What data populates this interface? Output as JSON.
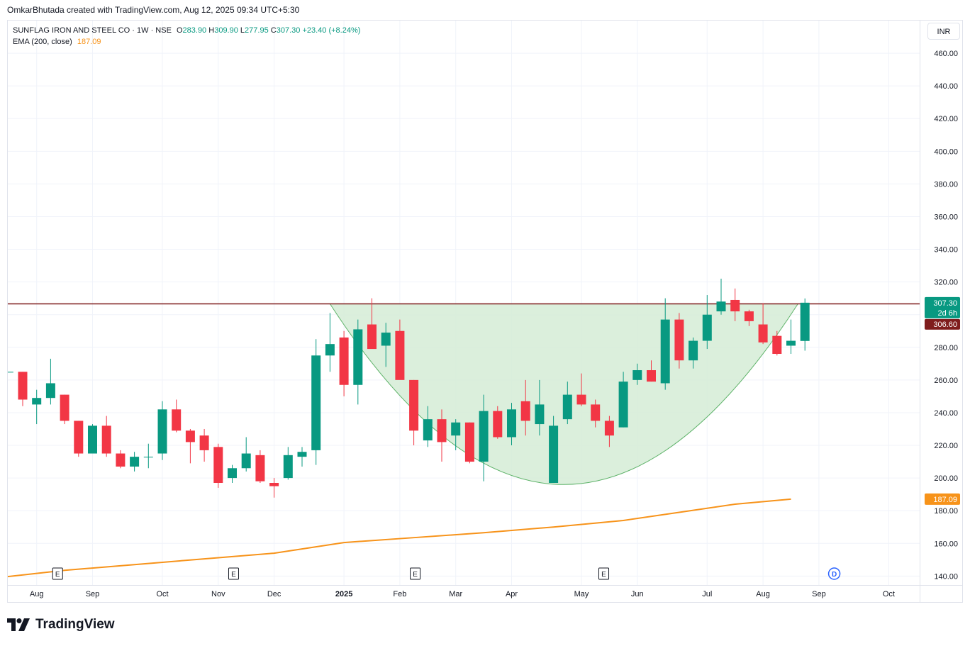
{
  "caption": "OmkarBhutada created with TradingView.com, Aug 12, 2025 09:34 UTC+5:30",
  "legend": {
    "symbol": "SUNFLAG IRON AND STEEL CO · 1W · NSE",
    "o_label": "O",
    "o_value": "283.90",
    "h_label": "H",
    "h_value": "309.90",
    "l_label": "L",
    "l_value": "277.95",
    "c_label": "C",
    "c_value": "307.30",
    "change": "+23.40 (+8.24%)",
    "ema_label": "EMA (200, close)",
    "ema_value": "187.09"
  },
  "currency": "INR",
  "brand": "TradingView",
  "colors": {
    "up": "#089981",
    "down": "#f23645",
    "ema": "#f7931a",
    "resistance": "#7f1d1d",
    "cup_fill": "#d5ecd6",
    "cup_stroke": "#5fb36a"
  },
  "chart_data": {
    "type": "candlestick",
    "y_ticks": [
      "460.00",
      "440.00",
      "420.00",
      "400.00",
      "380.00",
      "360.00",
      "340.00",
      "320.00",
      "300.00",
      "280.00",
      "260.00",
      "240.00",
      "220.00",
      "200.00",
      "180.00",
      "160.00",
      "140.00"
    ],
    "ylim": [
      134.5,
      480
    ],
    "x_labels": [
      {
        "text": "Aug",
        "i": 2
      },
      {
        "text": "Sep",
        "i": 6
      },
      {
        "text": "Oct",
        "i": 11
      },
      {
        "text": "Nov",
        "i": 15
      },
      {
        "text": "Dec",
        "i": 19
      },
      {
        "text": "2025",
        "i": 24,
        "bold": true
      },
      {
        "text": "Feb",
        "i": 28
      },
      {
        "text": "Mar",
        "i": 32
      },
      {
        "text": "Apr",
        "i": 36
      },
      {
        "text": "May",
        "i": 41
      },
      {
        "text": "Jun",
        "i": 45
      },
      {
        "text": "Jul",
        "i": 50
      },
      {
        "text": "Aug",
        "i": 54
      },
      {
        "text": "Sep",
        "i": 58
      },
      {
        "text": "Oct",
        "i": 63
      }
    ],
    "earnings_markers": [
      {
        "i": 3.5,
        "text": "E"
      },
      {
        "i": 16.1,
        "text": "E"
      },
      {
        "i": 29.1,
        "text": "E"
      },
      {
        "i": 42.6,
        "text": "E"
      }
    ],
    "dividend_markers": [
      {
        "i": 59.1,
        "text": "D"
      }
    ],
    "candles": [
      {
        "o": 265,
        "h": 265,
        "l": 265,
        "c": 265
      },
      {
        "o": 265,
        "h": 265,
        "l": 244,
        "c": 248
      },
      {
        "o": 245,
        "h": 254,
        "l": 233,
        "c": 249
      },
      {
        "o": 249,
        "h": 273,
        "l": 245,
        "c": 258
      },
      {
        "o": 251,
        "h": 251,
        "l": 233,
        "c": 235
      },
      {
        "o": 235,
        "h": 235,
        "l": 213,
        "c": 215
      },
      {
        "o": 215,
        "h": 233,
        "l": 215,
        "c": 232
      },
      {
        "o": 232,
        "h": 238,
        "l": 213,
        "c": 215
      },
      {
        "o": 215,
        "h": 217,
        "l": 206,
        "c": 207
      },
      {
        "o": 207,
        "h": 216,
        "l": 204,
        "c": 213
      },
      {
        "o": 213,
        "h": 221,
        "l": 206,
        "c": 213
      },
      {
        "o": 215,
        "h": 247,
        "l": 211,
        "c": 242
      },
      {
        "o": 242,
        "h": 248,
        "l": 228,
        "c": 229
      },
      {
        "o": 229,
        "h": 230,
        "l": 209,
        "c": 222
      },
      {
        "o": 226,
        "h": 230,
        "l": 210,
        "c": 217
      },
      {
        "o": 219,
        "h": 221,
        "l": 194,
        "c": 197
      },
      {
        "o": 200,
        "h": 208,
        "l": 197,
        "c": 206
      },
      {
        "o": 206,
        "h": 225,
        "l": 204,
        "c": 215
      },
      {
        "o": 214,
        "h": 217,
        "l": 197,
        "c": 198
      },
      {
        "o": 197,
        "h": 200,
        "l": 188,
        "c": 195
      },
      {
        "o": 200,
        "h": 219,
        "l": 199,
        "c": 214
      },
      {
        "o": 213,
        "h": 219,
        "l": 207,
        "c": 216
      },
      {
        "o": 217,
        "h": 285,
        "l": 208,
        "c": 275
      },
      {
        "o": 275,
        "h": 301,
        "l": 265,
        "c": 282
      },
      {
        "o": 286,
        "h": 290,
        "l": 250,
        "c": 257
      },
      {
        "o": 257,
        "h": 297,
        "l": 245,
        "c": 291
      },
      {
        "o": 294,
        "h": 310,
        "l": 281,
        "c": 279
      },
      {
        "o": 281,
        "h": 295,
        "l": 268,
        "c": 289
      },
      {
        "o": 290,
        "h": 297,
        "l": 262,
        "c": 260
      },
      {
        "o": 260,
        "h": 260,
        "l": 220,
        "c": 229
      },
      {
        "o": 223,
        "h": 244,
        "l": 219,
        "c": 236
      },
      {
        "o": 236,
        "h": 242,
        "l": 210,
        "c": 222
      },
      {
        "o": 226,
        "h": 236,
        "l": 217,
        "c": 234
      },
      {
        "o": 234,
        "h": 234,
        "l": 209,
        "c": 210
      },
      {
        "o": 210,
        "h": 251,
        "l": 198,
        "c": 241
      },
      {
        "o": 241,
        "h": 244,
        "l": 224,
        "c": 225
      },
      {
        "o": 225,
        "h": 246,
        "l": 220,
        "c": 242
      },
      {
        "o": 247,
        "h": 260,
        "l": 226,
        "c": 235
      },
      {
        "o": 233,
        "h": 260,
        "l": 226,
        "c": 245
      },
      {
        "o": 197,
        "h": 238,
        "l": 197,
        "c": 232
      },
      {
        "o": 236,
        "h": 259,
        "l": 233,
        "c": 251
      },
      {
        "o": 251,
        "h": 264,
        "l": 244,
        "c": 245
      },
      {
        "o": 245,
        "h": 248,
        "l": 231,
        "c": 235
      },
      {
        "o": 235,
        "h": 238,
        "l": 219,
        "c": 226
      },
      {
        "o": 231,
        "h": 265,
        "l": 231,
        "c": 259
      },
      {
        "o": 260,
        "h": 270,
        "l": 257,
        "c": 266
      },
      {
        "o": 266,
        "h": 272,
        "l": 259,
        "c": 259
      },
      {
        "o": 258,
        "h": 310,
        "l": 254,
        "c": 297
      },
      {
        "o": 297,
        "h": 301,
        "l": 267,
        "c": 272
      },
      {
        "o": 272,
        "h": 286,
        "l": 267,
        "c": 284
      },
      {
        "o": 284,
        "h": 312,
        "l": 279,
        "c": 300
      },
      {
        "o": 302,
        "h": 322,
        "l": 300,
        "c": 308
      },
      {
        "o": 309,
        "h": 316,
        "l": 296,
        "c": 302
      },
      {
        "o": 302,
        "h": 303,
        "l": 293,
        "c": 296
      },
      {
        "o": 294,
        "h": 307,
        "l": 282,
        "c": 283
      },
      {
        "o": 287,
        "h": 290,
        "l": 275,
        "c": 276
      },
      {
        "o": 281,
        "h": 297,
        "l": 276,
        "c": 284
      },
      {
        "o": 283.9,
        "h": 309.9,
        "l": 277.95,
        "c": 307.3
      }
    ],
    "ema_200": [
      [
        -1,
        138.8
      ],
      [
        4,
        143.5
      ],
      [
        9,
        147
      ],
      [
        14,
        150.5
      ],
      [
        19,
        154
      ],
      [
        24,
        160.5
      ],
      [
        29,
        163.5
      ],
      [
        34,
        166.5
      ],
      [
        39,
        170
      ],
      [
        44,
        174
      ],
      [
        48,
        179
      ],
      [
        52,
        184
      ],
      [
        56,
        187.09
      ]
    ],
    "resistance_level": 306.6,
    "cup_pattern": {
      "left_i": 23,
      "right_i": 56.5,
      "rim_price": 306.6,
      "bottom_price": 196
    },
    "last_price_label": "307.30",
    "countdown_label": "2d 6h",
    "resistance_label": "306.60",
    "ema_label": "187.09"
  }
}
